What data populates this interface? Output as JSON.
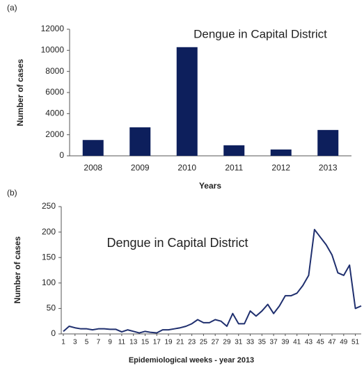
{
  "chart_data": [
    {
      "type": "bar",
      "panel": "(a)",
      "title": "Dengue in Capital District",
      "xlabel": "Years",
      "ylabel": "Number of cases",
      "categories": [
        "2008",
        "2009",
        "2010",
        "2011",
        "2012",
        "2013"
      ],
      "values": [
        1500,
        2700,
        10300,
        1000,
        600,
        2450
      ],
      "color": "#0d1f5c",
      "ylim": [
        0,
        12000
      ],
      "yticks": [
        0,
        2000,
        4000,
        6000,
        8000,
        10000,
        12000
      ],
      "grid": false
    },
    {
      "type": "line",
      "panel": "(b)",
      "title": "Dengue in Capital District",
      "xlabel": "Epidemiological weeks  - year 2013",
      "ylabel": "Number of cases",
      "x": [
        1,
        2,
        3,
        4,
        5,
        6,
        7,
        8,
        9,
        10,
        11,
        12,
        13,
        14,
        15,
        16,
        17,
        18,
        19,
        20,
        21,
        22,
        23,
        24,
        25,
        26,
        27,
        28,
        29,
        30,
        31,
        32,
        33,
        34,
        35,
        36,
        37,
        38,
        39,
        40,
        41,
        42,
        43,
        44,
        45,
        46,
        47,
        48,
        49,
        50,
        51,
        52
      ],
      "values": [
        5,
        15,
        12,
        10,
        10,
        8,
        10,
        10,
        9,
        9,
        4,
        8,
        5,
        2,
        5,
        3,
        2,
        8,
        8,
        10,
        12,
        15,
        20,
        28,
        22,
        22,
        28,
        25,
        15,
        40,
        20,
        20,
        45,
        35,
        45,
        58,
        40,
        55,
        75,
        75,
        80,
        95,
        115,
        205,
        190,
        175,
        155,
        120,
        115,
        135,
        50,
        55
      ],
      "color": "#1f2f6e",
      "xlim": [
        1,
        52
      ],
      "xticks": [
        1,
        3,
        5,
        7,
        9,
        11,
        13,
        15,
        17,
        19,
        21,
        23,
        25,
        27,
        29,
        31,
        33,
        35,
        37,
        39,
        41,
        43,
        45,
        47,
        49,
        51
      ],
      "ylim": [
        0,
        250
      ],
      "yticks": [
        0,
        50,
        100,
        150,
        200,
        250
      ],
      "grid": false
    }
  ]
}
